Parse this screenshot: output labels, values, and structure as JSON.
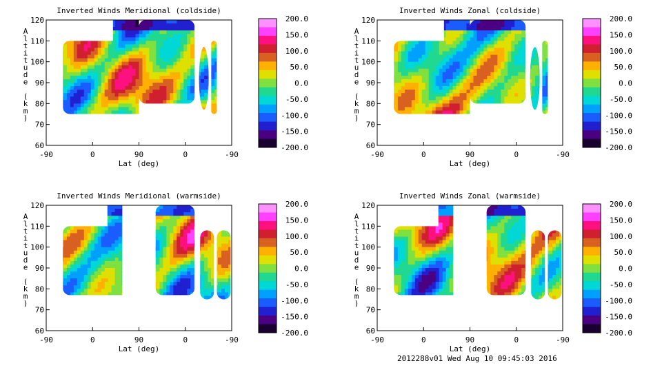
{
  "footer": "2012288v01 Wed Aug 10 09:45:03 2016",
  "chart_data": [
    {
      "type": "heatmap",
      "title": "Inverted Winds Meridional (coldside)",
      "xlabel": "Lat (deg)",
      "ylabel": "Altitude (km)",
      "xticks": [
        "-90",
        "0",
        "90",
        "0",
        "-90"
      ],
      "yticks": [
        "60",
        "70",
        "80",
        "90",
        "100",
        "110",
        "120"
      ],
      "ylim": [
        60,
        120
      ],
      "colorbar": {
        "ticks": [
          "200.0",
          "150.0",
          "100.0",
          "50.0",
          "0.0",
          "-50.0",
          "-100.0",
          "-150.0",
          "-200.0"
        ],
        "range": [
          -200,
          200
        ]
      }
    },
    {
      "type": "heatmap",
      "title": "Inverted Winds Zonal (coldside)",
      "xlabel": "Lat (deg)",
      "ylabel": "Altitude (km)",
      "xticks": [
        "-90",
        "0",
        "90",
        "0",
        "-90"
      ],
      "yticks": [
        "60",
        "70",
        "80",
        "90",
        "100",
        "110",
        "120"
      ],
      "ylim": [
        60,
        120
      ],
      "colorbar": {
        "ticks": [
          "200.0",
          "150.0",
          "100.0",
          "50.0",
          "0.0",
          "-50.0",
          "-100.0",
          "-150.0",
          "-200.0"
        ],
        "range": [
          -200,
          200
        ]
      }
    },
    {
      "type": "heatmap",
      "title": "Inverted Winds Meridional (warmside)",
      "xlabel": "Lat (deg)",
      "ylabel": "Altitude (km)",
      "xticks": [
        "-90",
        "0",
        "90",
        "0",
        "-90"
      ],
      "yticks": [
        "60",
        "70",
        "80",
        "90",
        "100",
        "110",
        "120"
      ],
      "ylim": [
        60,
        120
      ],
      "colorbar": {
        "ticks": [
          "200.0",
          "150.0",
          "100.0",
          "50.0",
          "0.0",
          "-50.0",
          "-100.0",
          "-150.0",
          "-200.0"
        ],
        "range": [
          -200,
          200
        ]
      }
    },
    {
      "type": "heatmap",
      "title": "Inverted Winds Zonal (warmside)",
      "xlabel": "Lat (deg)",
      "ylabel": "Altitude (km)",
      "xticks": [
        "-90",
        "0",
        "90",
        "0",
        "-90"
      ],
      "yticks": [
        "60",
        "70",
        "80",
        "90",
        "100",
        "110",
        "120"
      ],
      "ylim": [
        60,
        120
      ],
      "colorbar": {
        "ticks": [
          "200.0",
          "150.0",
          "100.0",
          "50.0",
          "0.0",
          "-50.0",
          "-100.0",
          "-150.0",
          "-200.0"
        ],
        "range": [
          -200,
          200
        ]
      }
    }
  ],
  "colormap": [
    "#1a0030",
    "#4b0082",
    "#2020d0",
    "#1a5cff",
    "#00a0ff",
    "#00d8d8",
    "#20d890",
    "#80e040",
    "#e0e000",
    "#ffb000",
    "#d86020",
    "#d02030",
    "#ff1080",
    "#ff40ff",
    "#ff90ff"
  ]
}
